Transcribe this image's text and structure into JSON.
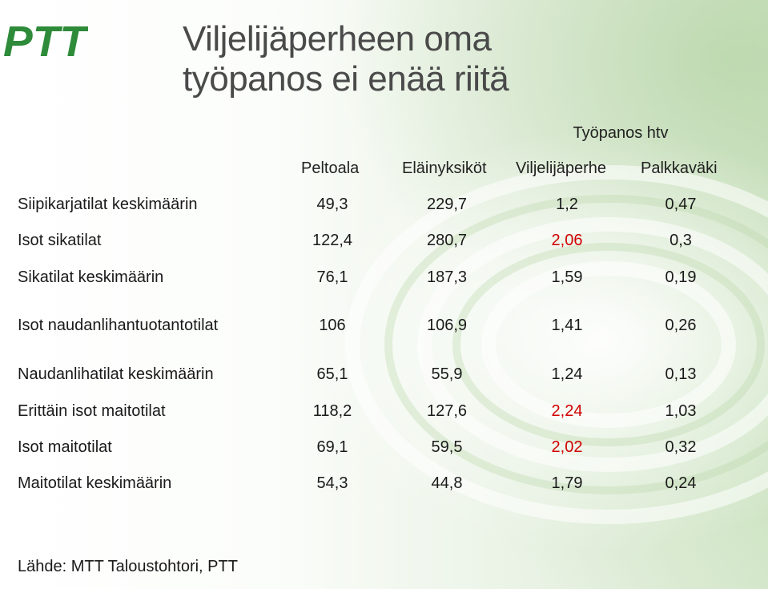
{
  "logo_text": "PTT",
  "title_lines": [
    "Viljelijäperheen oma",
    "työpanos ei enää riitä"
  ],
  "group_header": "Työpanos htv",
  "columns": [
    "Peltoala",
    "Eläinyksiköt",
    "Viljelijäperhe",
    "Palkkaväki"
  ],
  "rows": [
    {
      "label": "Siipikarjatilat keskimäärin",
      "values": [
        "49,3",
        "229,7",
        "1,2",
        "0,47"
      ]
    },
    {
      "label": "Isot sikatilat",
      "values": [
        "122,4",
        "280,7",
        "2,06",
        "0,3"
      ]
    },
    {
      "label": "Sikatilat keskimäärin",
      "values": [
        "76,1",
        "187,3",
        "1,59",
        "0,19"
      ]
    },
    {
      "label": "Isot naudanlihantuotantotilat",
      "values": [
        "106",
        "106,9",
        "1,41",
        "0,26"
      ]
    },
    {
      "label": "Naudanlihatilat keskimäärin",
      "values": [
        "65,1",
        "55,9",
        "1,24",
        "0,13"
      ]
    },
    {
      "label": "Erittäin isot maitotilat",
      "values": [
        "118,2",
        "127,6",
        "2,24",
        "1,03"
      ]
    },
    {
      "label": "Isot maitotilat",
      "values": [
        "69,1",
        "59,5",
        "2,02",
        "0,32"
      ]
    },
    {
      "label": "Maitotilat keskimäärin",
      "values": [
        "54,3",
        "44,8",
        "1,79",
        "0,24"
      ]
    }
  ],
  "highlight_color": "#d00000",
  "source": "Lähde: MTT Taloustohtori, PTT"
}
